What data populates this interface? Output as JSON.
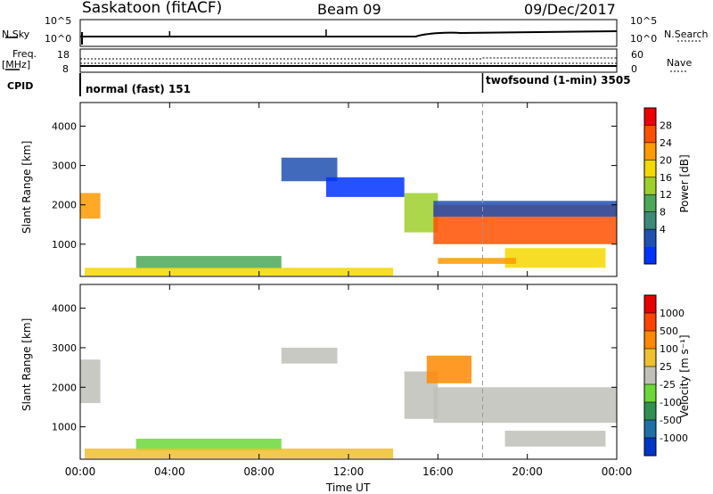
{
  "header": {
    "station": "Saskatoon (fitACF)",
    "beam": "Beam 09",
    "date": "09/Dec/2017"
  },
  "top_panels": {
    "nsky_label": "N.Sky",
    "nsky_ticks": [
      "10^5",
      "10^0"
    ],
    "nsearch_label": "N.Search",
    "nsearch_ticks": [
      "10^5",
      "10^0"
    ],
    "freq_label": "Freq.",
    "freq_unit": "[MHz]",
    "freq_ticks": [
      "18",
      "8"
    ],
    "nave_label": "Nave",
    "nave_ticks": [
      "60",
      "0"
    ],
    "cpid_label": "CPID",
    "cpid_modes": [
      {
        "name": "normal (fast) 151"
      },
      {
        "name": "twofsound (1-min) 3505"
      }
    ]
  },
  "time_axis": {
    "title": "Time UT",
    "ticks": [
      "00:00",
      "04:00",
      "08:00",
      "12:00",
      "16:00",
      "20:00",
      "00:00"
    ]
  },
  "power_panel": {
    "ylabel": "Slant Range [km]",
    "yticks": [
      "4000",
      "3000",
      "2000",
      "1000"
    ],
    "colorbar_label": "Power [dB]",
    "colorbar_ticks": [
      "28",
      "24",
      "20",
      "16",
      "12",
      "8",
      "4"
    ],
    "colors": [
      "#0033ff",
      "#2050b0",
      "#3c8a78",
      "#4ca858",
      "#9ed02a",
      "#f4d800",
      "#ff9a00",
      "#ff5000",
      "#ee0000"
    ]
  },
  "velocity_panel": {
    "ylabel": "Slant Range [km]",
    "yticks": [
      "4000",
      "3000",
      "2000",
      "1000"
    ],
    "colorbar_label": "Velocity [m s⁻¹]",
    "colorbar_ticks": [
      "1000",
      "500",
      "100",
      "25",
      "-25",
      "-100",
      "-500",
      "-1000"
    ],
    "colors": [
      "#0036c8",
      "#1e70a8",
      "#2f9050",
      "#6cd838",
      "#c0c0b8",
      "#f0c030",
      "#ff8800",
      "#ff4400",
      "#e80000"
    ]
  },
  "chart_data": {
    "type": "heatmap",
    "x_range_hours": [
      0,
      24
    ],
    "y_range_km": [
      180,
      4600
    ],
    "mode_change_hour": 18.0,
    "power_regions": [
      {
        "t0": 0.0,
        "t1": 0.9,
        "r0": 1650,
        "r1": 2300,
        "level": 6
      },
      {
        "t0": 2.5,
        "t1": 9.0,
        "r0": 380,
        "r1": 700,
        "level": 3
      },
      {
        "t0": 0.2,
        "t1": 14.0,
        "r0": 200,
        "r1": 400,
        "level": 5
      },
      {
        "t0": 9.0,
        "t1": 11.5,
        "r0": 2600,
        "r1": 3200,
        "level": 1
      },
      {
        "t0": 11.0,
        "t1": 14.5,
        "r0": 2200,
        "r1": 2700,
        "level": 0
      },
      {
        "t0": 14.5,
        "t1": 16.0,
        "r0": 1300,
        "r1": 2300,
        "level": 4
      },
      {
        "t0": 15.8,
        "t1": 24.0,
        "r0": 1000,
        "r1": 2000,
        "level": 7
      },
      {
        "t0": 15.8,
        "t1": 24.0,
        "r0": 1700,
        "r1": 2100,
        "level": 1
      },
      {
        "t0": 19.0,
        "t1": 23.5,
        "r0": 400,
        "r1": 900,
        "level": 5
      },
      {
        "t0": 16.0,
        "t1": 19.5,
        "r0": 500,
        "r1": 650,
        "level": 6
      }
    ],
    "velocity_regions": [
      {
        "t0": 0.0,
        "t1": 0.9,
        "r0": 1600,
        "r1": 2700,
        "level": 4
      },
      {
        "t0": 2.5,
        "t1": 9.0,
        "r0": 400,
        "r1": 700,
        "level": 3
      },
      {
        "t0": 0.2,
        "t1": 14.0,
        "r0": 200,
        "r1": 450,
        "level": 5
      },
      {
        "t0": 9.0,
        "t1": 11.5,
        "r0": 2600,
        "r1": 3000,
        "level": 4
      },
      {
        "t0": 14.5,
        "t1": 16.0,
        "r0": 1200,
        "r1": 2400,
        "level": 4
      },
      {
        "t0": 15.8,
        "t1": 24.0,
        "r0": 1100,
        "r1": 2000,
        "level": 4
      },
      {
        "t0": 15.5,
        "t1": 17.5,
        "r0": 2100,
        "r1": 2800,
        "level": 6
      },
      {
        "t0": 19.0,
        "t1": 23.5,
        "r0": 500,
        "r1": 900,
        "level": 4
      }
    ]
  }
}
